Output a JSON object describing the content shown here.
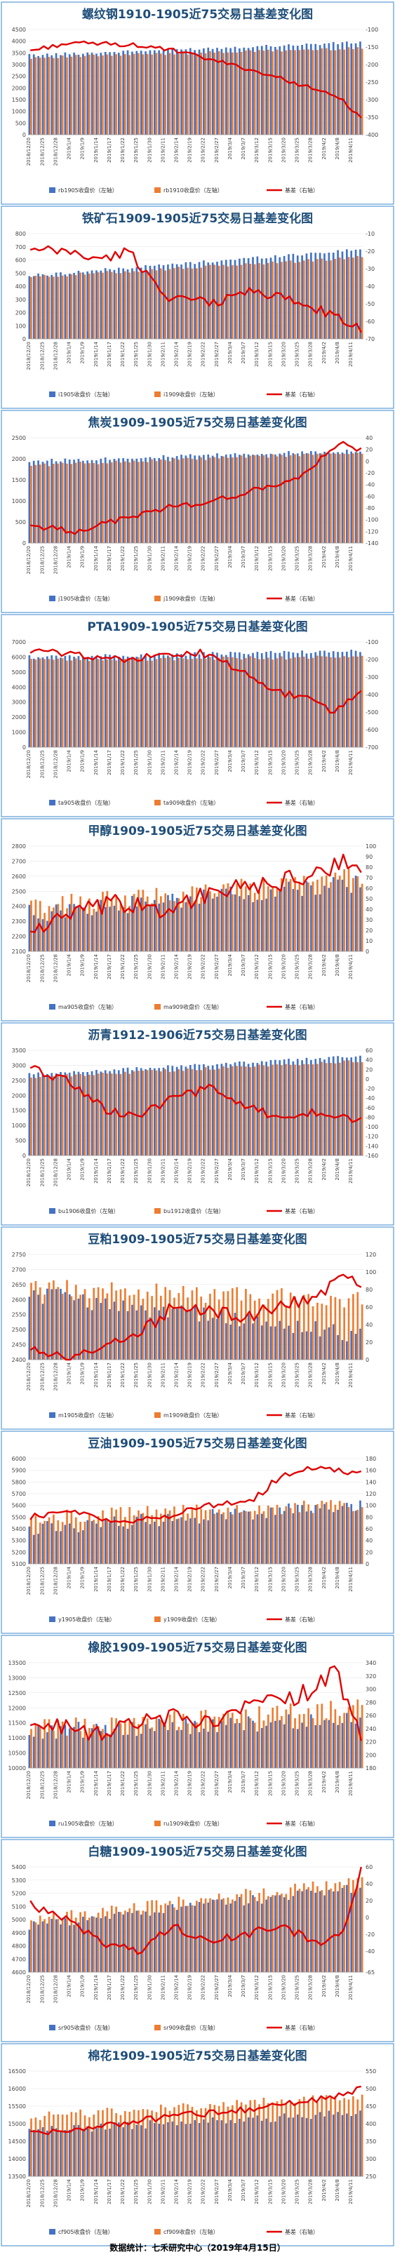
{
  "colors": {
    "front": "#4472c4",
    "back": "#ed7d31",
    "basis": "#e00000",
    "border": "#5b9bd5",
    "title": "#1f4e79"
  },
  "x_dates": [
    "2018/12/20",
    "2018/12/25",
    "2018/12/28",
    "2019/1/4",
    "2019/1/9",
    "2019/1/14",
    "2019/1/17",
    "2019/1/22",
    "2019/1/25",
    "2019/1/30",
    "2019/2/11",
    "2019/2/14",
    "2019/2/19",
    "2019/2/22",
    "2019/2/27",
    "2019/3/4",
    "2019/3/7",
    "2019/3/12",
    "2019/3/15",
    "2019/3/20",
    "2019/3/25",
    "2019/3/28",
    "2019/4/2",
    "2019/4/8",
    "2019/4/11"
  ],
  "footer": "数据统计：七禾研究中心（2019年4月15日）",
  "chart_data": [
    {
      "type": "bar",
      "title": "螺纹钢1910-1905近75交易日基差变化图",
      "series": [
        {
          "name": "rb1905收盘价（左轴）",
          "start": 3400,
          "end": 3950,
          "noise": 60
        },
        {
          "name": "rb1910收盘价（左轴）",
          "start": 3300,
          "end": 3700,
          "noise": 60
        },
        {
          "name": "基差（右轴）",
          "points": [
            [
              0,
              -160
            ],
            [
              8,
              -140
            ],
            [
              16,
              -140
            ],
            [
              24,
              -145
            ],
            [
              32,
              -160
            ],
            [
              40,
              -185
            ],
            [
              48,
              -210
            ],
            [
              56,
              -240
            ],
            [
              64,
              -270
            ],
            [
              70,
              -305
            ],
            [
              74,
              -350
            ]
          ],
          "noise": 6
        }
      ],
      "ylim_left": [
        0,
        4500
      ],
      "yticks_left": [
        0,
        500,
        1000,
        1500,
        2000,
        2500,
        3000,
        3500,
        4000,
        4500
      ],
      "ylim_right": [
        -400,
        -100
      ],
      "yticks_right": [
        -100,
        -150,
        -200,
        -250,
        -300,
        -350,
        -400
      ]
    },
    {
      "type": "bar",
      "title": "铁矿石1909-1905近75交易日基差变化图",
      "series": [
        {
          "name": "i1905收盘价（左轴）",
          "start": 480,
          "end": 680,
          "noise": 12
        },
        {
          "name": "i1909收盘价（左轴）",
          "start": 470,
          "end": 620,
          "noise": 12
        },
        {
          "name": "基差（右轴）",
          "points": [
            [
              0,
              -20
            ],
            [
              8,
              -20
            ],
            [
              16,
              -25
            ],
            [
              22,
              -20
            ],
            [
              30,
              -45
            ],
            [
              40,
              -50
            ],
            [
              50,
              -42
            ],
            [
              58,
              -48
            ],
            [
              66,
              -55
            ],
            [
              74,
              -65
            ]
          ],
          "noise": 3
        }
      ],
      "ylim_left": [
        0,
        800
      ],
      "yticks_left": [
        0,
        100,
        200,
        300,
        400,
        500,
        600,
        700,
        800
      ],
      "ylim_right": [
        -70,
        -10
      ],
      "yticks_right": [
        -10,
        -20,
        -30,
        -40,
        -50,
        -60,
        -70
      ]
    },
    {
      "type": "bar",
      "title": "焦炭1909-1905近75交易日基差变化图",
      "series": [
        {
          "name": "j1905收盘价（左轴）",
          "start": 1950,
          "end": 2200,
          "noise": 40
        },
        {
          "name": "j1909收盘价（左轴）",
          "start": 1850,
          "end": 2150,
          "noise": 40
        },
        {
          "name": "基差（右轴）",
          "points": [
            [
              0,
              -110
            ],
            [
              10,
              -120
            ],
            [
              20,
              -100
            ],
            [
              30,
              -80
            ],
            [
              40,
              -70
            ],
            [
              50,
              -50
            ],
            [
              60,
              -30
            ],
            [
              66,
              10
            ],
            [
              70,
              30
            ],
            [
              74,
              20
            ]
          ],
          "noise": 5
        }
      ],
      "ylim_left": [
        0,
        2500
      ],
      "yticks_left": [
        0,
        500,
        1000,
        1500,
        2000,
        2500
      ],
      "ylim_right": [
        -140,
        40
      ],
      "yticks_right": [
        40,
        20,
        0,
        -20,
        -40,
        -60,
        -80,
        -100,
        -120,
        -140
      ]
    },
    {
      "type": "bar",
      "title": "PTA1909-1905近75交易日基差变化图",
      "series": [
        {
          "name": "ta905收盘价（左轴）",
          "start": 6000,
          "end": 6400,
          "noise": 120
        },
        {
          "name": "ta909收盘价（左轴）",
          "start": 5800,
          "end": 6000,
          "noise": 120
        },
        {
          "name": "基差（右轴）",
          "points": [
            [
              0,
              -150
            ],
            [
              10,
              -170
            ],
            [
              20,
              -200
            ],
            [
              30,
              -180
            ],
            [
              38,
              -160
            ],
            [
              46,
              -250
            ],
            [
              54,
              -380
            ],
            [
              62,
              -420
            ],
            [
              68,
              -500
            ],
            [
              74,
              -380
            ]
          ],
          "noise": 20
        }
      ],
      "ylim_left": [
        0,
        7000
      ],
      "yticks_left": [
        0,
        1000,
        2000,
        3000,
        4000,
        5000,
        6000,
        7000
      ],
      "ylim_right": [
        -700,
        -100
      ],
      "yticks_right": [
        -100,
        -200,
        -300,
        -400,
        -500,
        -600,
        -700
      ]
    },
    {
      "type": "bar",
      "title": "甲醇1909-1905近75交易日基差变化图",
      "series": [
        {
          "name": "ma905收盘价（左轴）",
          "start": 2350,
          "end": 2550,
          "noise": 60
        },
        {
          "name": "ma909收盘价（左轴）",
          "start": 2400,
          "end": 2600,
          "noise": 60
        },
        {
          "name": "基差（右轴）",
          "points": [
            [
              0,
              20
            ],
            [
              10,
              35
            ],
            [
              20,
              45
            ],
            [
              30,
              40
            ],
            [
              40,
              55
            ],
            [
              50,
              60
            ],
            [
              60,
              70
            ],
            [
              66,
              75
            ],
            [
              70,
              90
            ],
            [
              74,
              70
            ]
          ],
          "noise": 10
        }
      ],
      "ylim_left": [
        2100,
        2800
      ],
      "yticks_left": [
        2100,
        2200,
        2300,
        2400,
        2500,
        2600,
        2700,
        2800
      ],
      "ylim_right": [
        0,
        100
      ],
      "yticks_right": [
        0,
        10,
        20,
        30,
        40,
        50,
        60,
        70,
        80,
        90,
        100
      ]
    },
    {
      "type": "bar",
      "title": "沥青1912-1906近75交易日基差变化图",
      "series": [
        {
          "name": "bu1906收盘价（左轴）",
          "start": 2700,
          "end": 3300,
          "noise": 50
        },
        {
          "name": "bu1912收盘价（左轴）",
          "start": 2600,
          "end": 3150,
          "noise": 50
        },
        {
          "name": "基差（右轴）",
          "points": [
            [
              0,
              20
            ],
            [
              8,
              0
            ],
            [
              16,
              -60
            ],
            [
              24,
              -80
            ],
            [
              32,
              -40
            ],
            [
              40,
              -20
            ],
            [
              48,
              -60
            ],
            [
              56,
              -80
            ],
            [
              64,
              -70
            ],
            [
              74,
              -90
            ]
          ],
          "noise": 10
        }
      ],
      "ylim_left": [
        0,
        3500
      ],
      "yticks_left": [
        0,
        500,
        1000,
        1500,
        2000,
        2500,
        3000,
        3500
      ],
      "ylim_right": [
        -160,
        60
      ],
      "yticks_right": [
        60,
        40,
        20,
        0,
        -20,
        -40,
        -60,
        -80,
        -100,
        -120,
        -140,
        -160
      ]
    },
    {
      "type": "bar",
      "title": "豆粕1909-1905近75交易日基差变化图",
      "series": [
        {
          "name": "m1905收盘价（左轴）",
          "start": 2620,
          "end": 2480,
          "noise": 30
        },
        {
          "name": "m1909收盘价（左轴）",
          "start": 2640,
          "end": 2600,
          "noise": 30
        },
        {
          "name": "基差（右轴）",
          "points": [
            [
              0,
              10
            ],
            [
              8,
              0
            ],
            [
              16,
              10
            ],
            [
              24,
              30
            ],
            [
              32,
              60
            ],
            [
              40,
              55
            ],
            [
              48,
              50
            ],
            [
              56,
              60
            ],
            [
              64,
              70
            ],
            [
              70,
              100
            ],
            [
              74,
              90
            ]
          ],
          "noise": 8
        }
      ],
      "ylim_left": [
        2400,
        2750
      ],
      "yticks_left": [
        2400,
        2450,
        2500,
        2550,
        2600,
        2650,
        2700,
        2750
      ],
      "ylim_right": [
        0,
        120
      ],
      "yticks_right": [
        0,
        20,
        40,
        60,
        80,
        100,
        120
      ]
    },
    {
      "type": "bar",
      "title": "豆油1909-1905近75交易日基差变化图",
      "series": [
        {
          "name": "y1905收盘价（左轴）",
          "start": 5400,
          "end": 5600,
          "noise": 60
        },
        {
          "name": "y1909收盘价（左轴）",
          "start": 5500,
          "end": 5600,
          "noise": 60
        },
        {
          "name": "基差（右轴）",
          "points": [
            [
              0,
              80
            ],
            [
              10,
              90
            ],
            [
              20,
              70
            ],
            [
              30,
              80
            ],
            [
              40,
              100
            ],
            [
              50,
              110
            ],
            [
              56,
              150
            ],
            [
              62,
              165
            ],
            [
              68,
              160
            ],
            [
              74,
              155
            ]
          ],
          "noise": 6
        }
      ],
      "ylim_left": [
        5100,
        6000
      ],
      "yticks_left": [
        5100,
        5200,
        5300,
        5400,
        5500,
        5600,
        5700,
        5800,
        5900,
        6000
      ],
      "ylim_right": [
        0,
        180
      ],
      "yticks_right": [
        0,
        20,
        40,
        60,
        80,
        100,
        120,
        140,
        160,
        180
      ]
    },
    {
      "type": "bar",
      "title": "橡胶1909-1905近75交易日基差变化图",
      "series": [
        {
          "name": "ru1905收盘价（左轴）",
          "start": 11200,
          "end": 11600,
          "noise": 300
        },
        {
          "name": "ru1909收盘价（左轴）",
          "start": 11300,
          "end": 12000,
          "noise": 300
        },
        {
          "name": "基差（右轴）",
          "points": [
            [
              0,
              260
            ],
            [
              8,
              240
            ],
            [
              16,
              230
            ],
            [
              24,
              250
            ],
            [
              32,
              260
            ],
            [
              40,
              250
            ],
            [
              48,
              270
            ],
            [
              56,
              280
            ],
            [
              64,
              300
            ],
            [
              68,
              330
            ],
            [
              72,
              260
            ],
            [
              74,
              220
            ]
          ],
          "noise": 15
        }
      ],
      "ylim_left": [
        10000,
        13500
      ],
      "yticks_left": [
        10000,
        10500,
        11000,
        11500,
        12000,
        12500,
        13000,
        13500
      ],
      "ylim_right": [
        180,
        340
      ],
      "yticks_right": [
        180,
        200,
        220,
        240,
        260,
        280,
        300,
        320,
        340
      ]
    },
    {
      "type": "bar",
      "title": "白糖1909-1905近75交易日基差变化图",
      "series": [
        {
          "name": "sr905收盘价（左轴）",
          "start": 4950,
          "end": 5250,
          "noise": 40
        },
        {
          "name": "sr909收盘价（左轴）",
          "start": 5000,
          "end": 5300,
          "noise": 40
        },
        {
          "name": "基差（右轴）",
          "points": [
            [
              0,
              15
            ],
            [
              8,
              0
            ],
            [
              16,
              -30
            ],
            [
              24,
              -40
            ],
            [
              32,
              -10
            ],
            [
              40,
              -30
            ],
            [
              48,
              -20
            ],
            [
              56,
              -10
            ],
            [
              64,
              -30
            ],
            [
              70,
              -20
            ],
            [
              74,
              60
            ]
          ],
          "noise": 5
        }
      ],
      "ylim_left": [
        4600,
        5400
      ],
      "yticks_left": [
        4600,
        4700,
        4800,
        4900,
        5000,
        5100,
        5200,
        5300,
        5400
      ],
      "ylim_right": [
        -65,
        60
      ],
      "yticks_right": [
        60,
        40,
        20,
        0,
        -20,
        -40,
        -65
      ]
    },
    {
      "type": "bar",
      "title": "棉花1909-1905近75交易日基差变化图",
      "series": [
        {
          "name": "cf905收盘价（左轴）",
          "start": 14800,
          "end": 15300,
          "noise": 120
        },
        {
          "name": "cf909收盘价（左轴）",
          "start": 15200,
          "end": 15800,
          "noise": 120
        },
        {
          "name": "基差（右轴）",
          "points": [
            [
              0,
              380
            ],
            [
              10,
              380
            ],
            [
              20,
              400
            ],
            [
              30,
              420
            ],
            [
              40,
              430
            ],
            [
              50,
              440
            ],
            [
              60,
              460
            ],
            [
              70,
              480
            ],
            [
              74,
              500
            ]
          ],
          "noise": 10
        }
      ],
      "ylim_left": [
        13500,
        16500
      ],
      "yticks_left": [
        13500,
        14000,
        14500,
        15000,
        15500,
        16000,
        16500
      ],
      "ylim_right": [
        250,
        550
      ],
      "yticks_right": [
        250,
        300,
        350,
        400,
        450,
        500,
        550
      ]
    }
  ]
}
